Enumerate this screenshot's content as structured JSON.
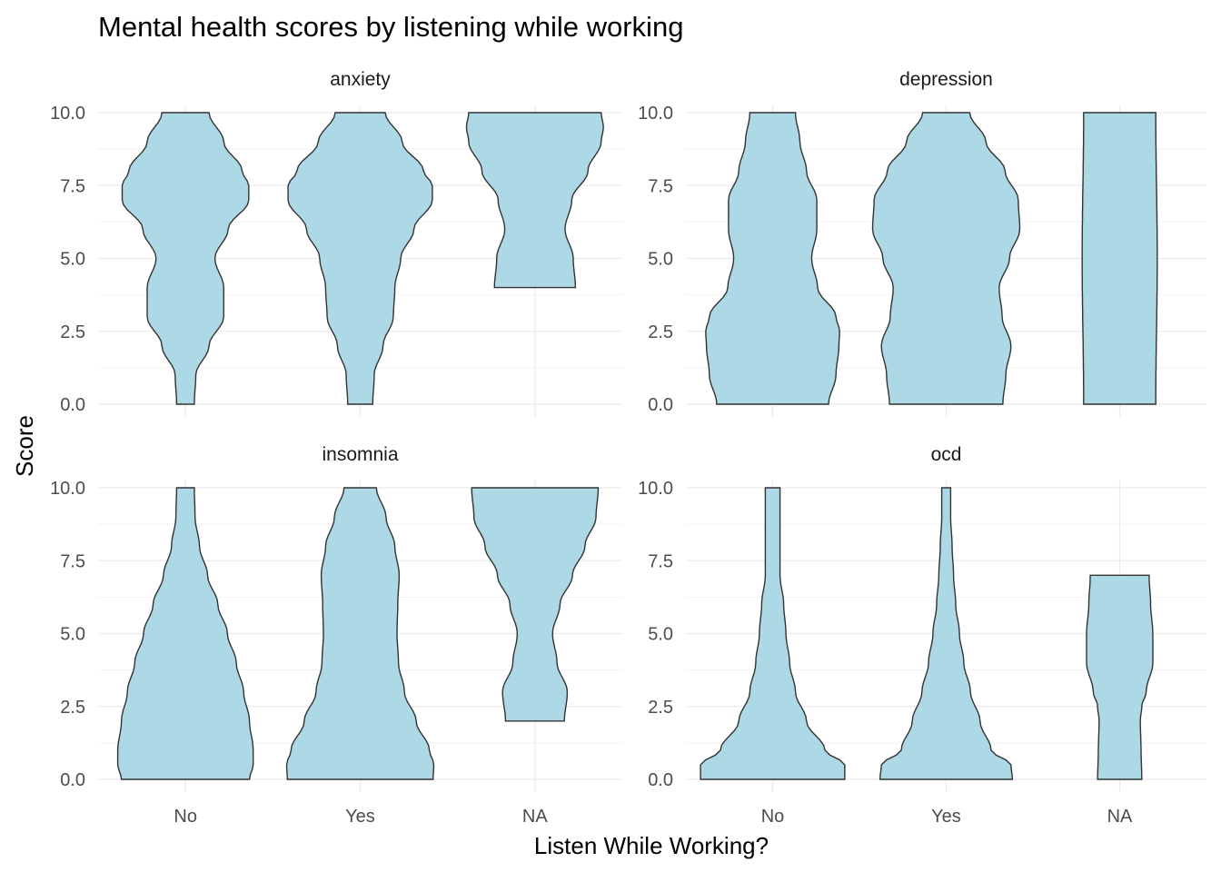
{
  "chart_data": {
    "type": "violin",
    "title": "Mental health scores by listening while working",
    "xlabel": "Listen While Working?",
    "ylabel": "Score",
    "categories": [
      "No",
      "Yes",
      "NA"
    ],
    "y_ticks": [
      0.0,
      2.5,
      5.0,
      7.5,
      10.0
    ],
    "y_tick_labels": [
      "0.0",
      "2.5",
      "5.0",
      "7.5",
      "10.0"
    ],
    "ylim": [
      0,
      10
    ],
    "fill_color": "#add8e6",
    "outline_color": "#333333",
    "grid": true,
    "facet_layout": "2x2",
    "panels": [
      {
        "name": "anxiety",
        "violins": [
          {
            "category": "No",
            "y": [
              0,
              1,
              2,
              3,
              4,
              5,
              6,
              7,
              7.5,
              8,
              9,
              10
            ],
            "relative_width": [
              0.12,
              0.14,
              0.32,
              0.52,
              0.52,
              0.4,
              0.58,
              0.86,
              0.86,
              0.77,
              0.52,
              0.32
            ]
          },
          {
            "category": "Yes",
            "y": [
              0,
              1,
              2,
              3,
              4,
              5,
              6,
              7,
              7.5,
              8,
              9,
              10
            ],
            "relative_width": [
              0.17,
              0.19,
              0.31,
              0.45,
              0.47,
              0.55,
              0.73,
              0.98,
              0.98,
              0.86,
              0.57,
              0.34
            ]
          },
          {
            "category": "NA",
            "y": [
              4,
              5,
              6,
              7,
              8,
              9,
              9.5,
              10
            ],
            "relative_width": [
              0.55,
              0.52,
              0.41,
              0.5,
              0.72,
              0.9,
              0.93,
              0.9
            ]
          }
        ]
      },
      {
        "name": "depression",
        "violins": [
          {
            "category": "No",
            "y": [
              0,
              1,
              2,
              2.5,
              3,
              4,
              5,
              6,
              7,
              8,
              9,
              10
            ],
            "relative_width": [
              0.76,
              0.86,
              0.9,
              0.91,
              0.86,
              0.61,
              0.53,
              0.6,
              0.6,
              0.46,
              0.37,
              0.31
            ]
          },
          {
            "category": "Yes",
            "y": [
              0,
              1,
              2,
              3,
              4,
              5,
              6,
              7,
              8,
              9,
              10
            ],
            "relative_width": [
              0.77,
              0.81,
              0.88,
              0.76,
              0.72,
              0.86,
              1.0,
              0.98,
              0.8,
              0.54,
              0.32
            ]
          },
          {
            "category": "NA",
            "y": [
              0,
              5,
              10
            ],
            "relative_width": [
              0.49,
              0.51,
              0.49
            ]
          }
        ]
      },
      {
        "name": "insomnia",
        "violins": [
          {
            "category": "No",
            "y": [
              0,
              0.5,
              1,
              2,
              3,
              4,
              5,
              6,
              7,
              8,
              9,
              10
            ],
            "relative_width": [
              0.87,
              0.92,
              0.92,
              0.87,
              0.79,
              0.69,
              0.57,
              0.44,
              0.3,
              0.19,
              0.13,
              0.12
            ]
          },
          {
            "category": "Yes",
            "y": [
              0,
              0.5,
              1,
              2,
              3,
              4,
              5,
              6,
              7,
              8,
              9,
              10
            ],
            "relative_width": [
              0.99,
              1.0,
              0.94,
              0.76,
              0.6,
              0.52,
              0.5,
              0.51,
              0.53,
              0.47,
              0.35,
              0.22
            ]
          },
          {
            "category": "NA",
            "y": [
              2,
              3,
              4,
              5,
              6,
              7,
              8,
              9,
              10
            ],
            "relative_width": [
              0.4,
              0.44,
              0.3,
              0.24,
              0.34,
              0.51,
              0.68,
              0.83,
              0.86
            ]
          }
        ]
      },
      {
        "name": "ocd",
        "violins": [
          {
            "category": "No",
            "y": [
              0,
              0.5,
              1,
              2,
              3,
              4,
              5,
              6,
              7,
              8,
              9,
              10
            ],
            "relative_width": [
              0.98,
              0.98,
              0.71,
              0.46,
              0.31,
              0.23,
              0.18,
              0.15,
              0.1,
              0.1,
              0.1,
              0.1
            ]
          },
          {
            "category": "Yes",
            "y": [
              0,
              0.5,
              1,
              2,
              3,
              4,
              5,
              6,
              7,
              8,
              9,
              10
            ],
            "relative_width": [
              0.9,
              0.88,
              0.61,
              0.46,
              0.33,
              0.24,
              0.18,
              0.13,
              0.1,
              0.08,
              0.06,
              0.06
            ]
          },
          {
            "category": "NA",
            "y": [
              0,
              1,
              2,
              2.5,
              3,
              4,
              5,
              6,
              7
            ],
            "relative_width": [
              0.3,
              0.29,
              0.28,
              0.3,
              0.36,
              0.45,
              0.45,
              0.42,
              0.4
            ]
          }
        ]
      }
    ]
  }
}
